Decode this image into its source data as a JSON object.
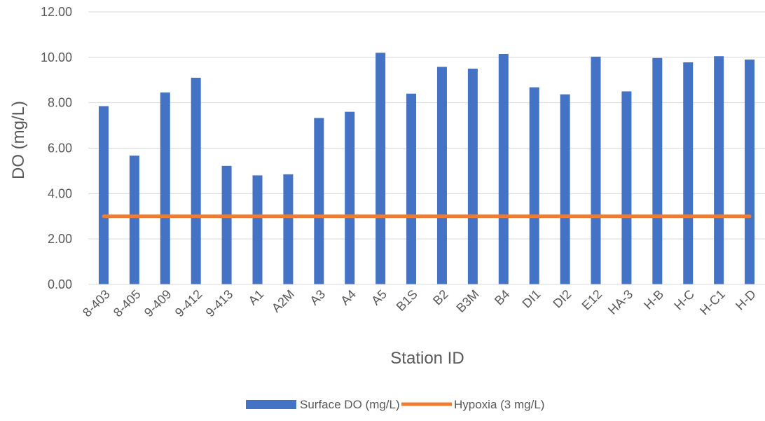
{
  "chart_data": {
    "type": "bar",
    "xlabel": "Station ID",
    "ylabel": "DO (mg/L)",
    "ylim": [
      0,
      12
    ],
    "y_ticks": [
      "0.00",
      "2.00",
      "4.00",
      "6.00",
      "8.00",
      "10.00",
      "12.00"
    ],
    "grid": true,
    "legend_position": "bottom",
    "categories": [
      "8-403",
      "8-405",
      "9-409",
      "9-412",
      "9-413",
      "A1",
      "A2M",
      "A3",
      "A4",
      "A5",
      "B1S",
      "B2",
      "B3M",
      "B4",
      "DI1",
      "DI2",
      "E12",
      "HA-3",
      "H-B",
      "H-C",
      "H-C1",
      "H-D"
    ],
    "series": [
      {
        "name": "Surface DO (mg/L)",
        "type": "bar",
        "color": "#4472C4",
        "values": [
          7.85,
          5.67,
          8.45,
          9.1,
          5.22,
          4.8,
          4.85,
          7.33,
          7.6,
          10.2,
          8.4,
          9.58,
          9.5,
          10.15,
          8.68,
          8.37,
          10.03,
          8.5,
          9.97,
          9.78,
          10.05,
          9.9
        ]
      },
      {
        "name": "Hypoxia (3 mg/L)",
        "type": "line",
        "color": "#ED7D31",
        "values": [
          3,
          3,
          3,
          3,
          3,
          3,
          3,
          3,
          3,
          3,
          3,
          3,
          3,
          3,
          3,
          3,
          3,
          3,
          3,
          3,
          3,
          3
        ]
      }
    ]
  }
}
